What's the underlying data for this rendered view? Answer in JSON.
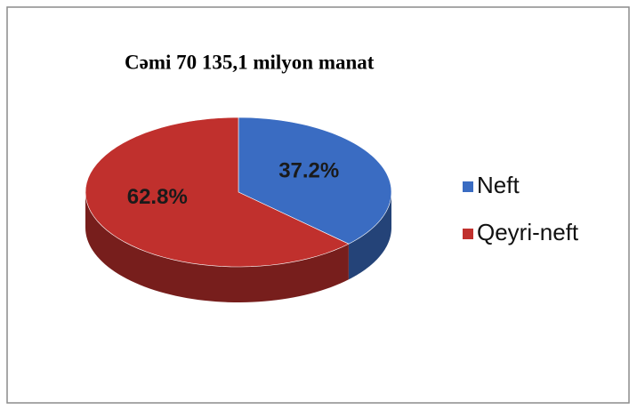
{
  "chart_data": {
    "type": "pie",
    "title": "Cəmi 70 135,1 milyon manat",
    "categories": [
      "Neft",
      "Qeyri-neft"
    ],
    "values": [
      37.2,
      62.8
    ],
    "value_labels": [
      "37.2%",
      "62.8%"
    ],
    "colors": [
      "#3a6cc2",
      "#c0302d"
    ],
    "legend": "right"
  }
}
